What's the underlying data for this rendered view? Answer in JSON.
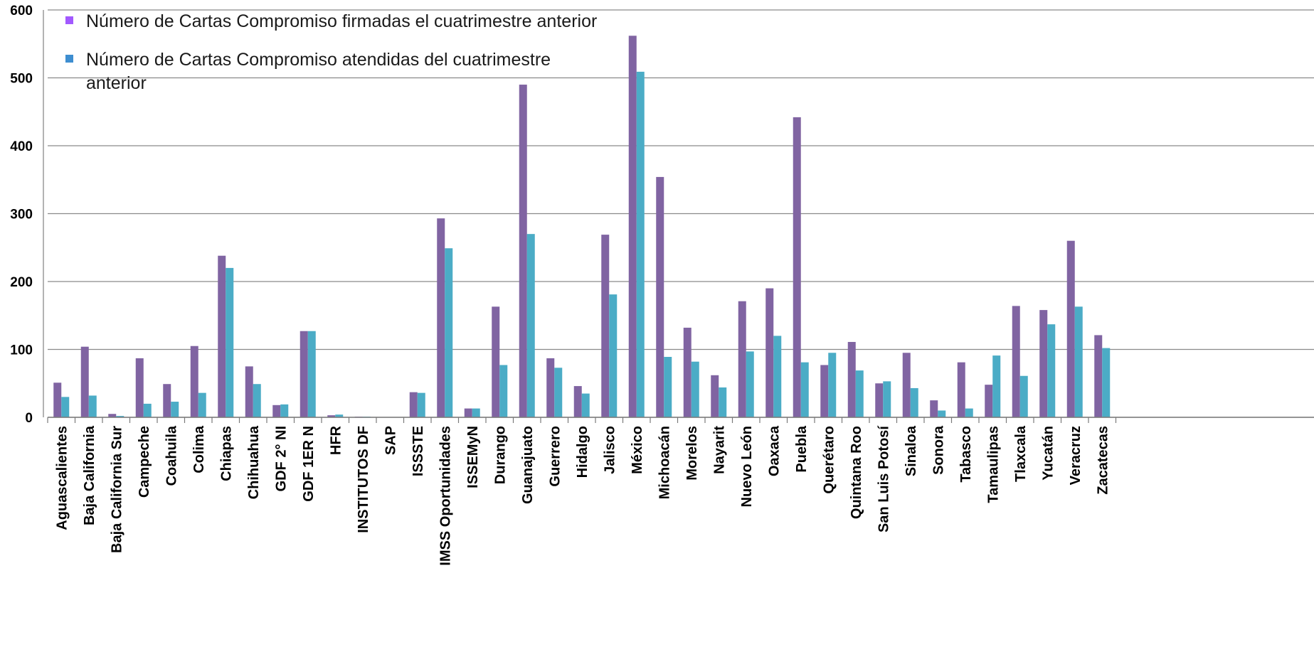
{
  "chart_data": {
    "type": "bar",
    "categories": [
      "Aguascalientes",
      "Baja California",
      "Baja California Sur",
      "Campeche",
      "Coahuila",
      "Colima",
      "Chiapas",
      "Chihuahua",
      "GDF 2° NI",
      "GDF 1ER N",
      "HFR",
      "INSTITUTOS DF",
      "SAP",
      "ISSSTE",
      "IMSS Oportunidades",
      "ISSEMyN",
      "Durango",
      "Guanajuato",
      "Guerrero",
      "Hidalgo",
      "Jalisco",
      "México",
      "Michoacán",
      "Morelos",
      "Nayarit",
      "Nuevo León",
      "Oaxaca",
      "Puebla",
      "Querétaro",
      "Quintana Roo",
      "San Luis Potosí",
      "Sinaloa",
      "Sonora",
      "Tabasco",
      "Tamaulipas",
      "Tlaxcala",
      "Yucatán",
      "Veracruz",
      "Zacatecas"
    ],
    "series": [
      {
        "name": "Número de Cartas Compromiso firmadas el cuatrimestre anterior",
        "color": "#8064A2",
        "legend_color": "#A259FF",
        "values": [
          51,
          104,
          5,
          87,
          49,
          105,
          238,
          75,
          18,
          127,
          3,
          1,
          0,
          37,
          293,
          13,
          163,
          490,
          87,
          46,
          269,
          562,
          354,
          132,
          62,
          171,
          190,
          442,
          77,
          111,
          50,
          95,
          25,
          81,
          48,
          164,
          158,
          260,
          121
        ]
      },
      {
        "name": "Número de Cartas Compromiso atendidas del cuatrimestre anterior",
        "color": "#4BACC6",
        "legend_color": "#3E8ED0",
        "values": [
          30,
          32,
          2,
          20,
          23,
          36,
          220,
          49,
          19,
          127,
          4,
          1,
          0,
          36,
          249,
          13,
          77,
          270,
          73,
          35,
          181,
          509,
          89,
          82,
          44,
          97,
          120,
          81,
          95,
          69,
          53,
          43,
          10,
          13,
          91,
          61,
          137,
          163,
          102
        ]
      }
    ],
    "y_ticks": [
      0,
      100,
      200,
      300,
      400,
      500,
      600
    ],
    "ylim": [
      0,
      600
    ],
    "grid": true,
    "legend_position": "top-left",
    "title": "",
    "xlabel": "",
    "ylabel": ""
  }
}
